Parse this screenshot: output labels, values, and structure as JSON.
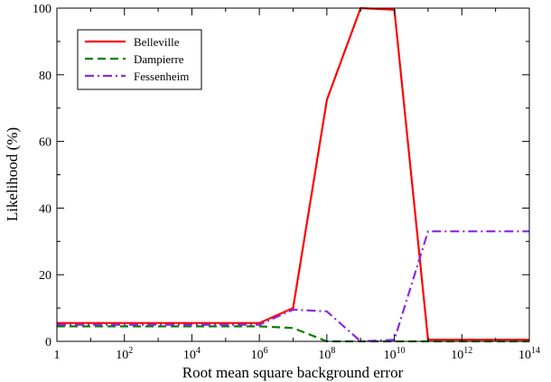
{
  "chart_data": {
    "type": "line",
    "xlabel": "Root mean square background error",
    "ylabel": "Likelihood (%)",
    "x_scale": "log10",
    "xlim": [
      1,
      100000000000000
    ],
    "ylim": [
      0,
      100
    ],
    "x_ticks": [
      {
        "value": 1,
        "base": "1",
        "exp": ""
      },
      {
        "value": 100,
        "base": "10",
        "exp": "2"
      },
      {
        "value": 10000,
        "base": "10",
        "exp": "4"
      },
      {
        "value": 1000000,
        "base": "10",
        "exp": "6"
      },
      {
        "value": 100000000,
        "base": "10",
        "exp": "8"
      },
      {
        "value": 10000000000,
        "base": "10",
        "exp": "10"
      },
      {
        "value": 1000000000000,
        "base": "10",
        "exp": "12"
      },
      {
        "value": 100000000000000,
        "base": "10",
        "exp": "14"
      }
    ],
    "y_ticks": [
      0,
      20,
      40,
      60,
      80,
      100
    ],
    "grid": false,
    "legend_position": "top-left",
    "x": [
      1,
      1000000,
      10000000,
      100000000,
      1000000000,
      10000000000,
      100000000000,
      100000000000000
    ],
    "series": [
      {
        "name": "Belleville",
        "color": "#ff0000",
        "dash": "solid",
        "values": [
          5.5,
          5.5,
          10.0,
          72.5,
          100.0,
          99.5,
          0.5,
          0.5
        ]
      },
      {
        "name": "Dampierre",
        "color": "#008000",
        "dash": "dashed",
        "values": [
          4.5,
          4.5,
          4.0,
          0.0,
          0.0,
          0.0,
          0.0,
          0.0
        ]
      },
      {
        "name": "Fessenheim",
        "color": "#8a2be2",
        "dash": "dashdot",
        "values": [
          5.0,
          5.0,
          9.5,
          9.0,
          0.0,
          0.5,
          33.0,
          33.0
        ]
      }
    ]
  }
}
